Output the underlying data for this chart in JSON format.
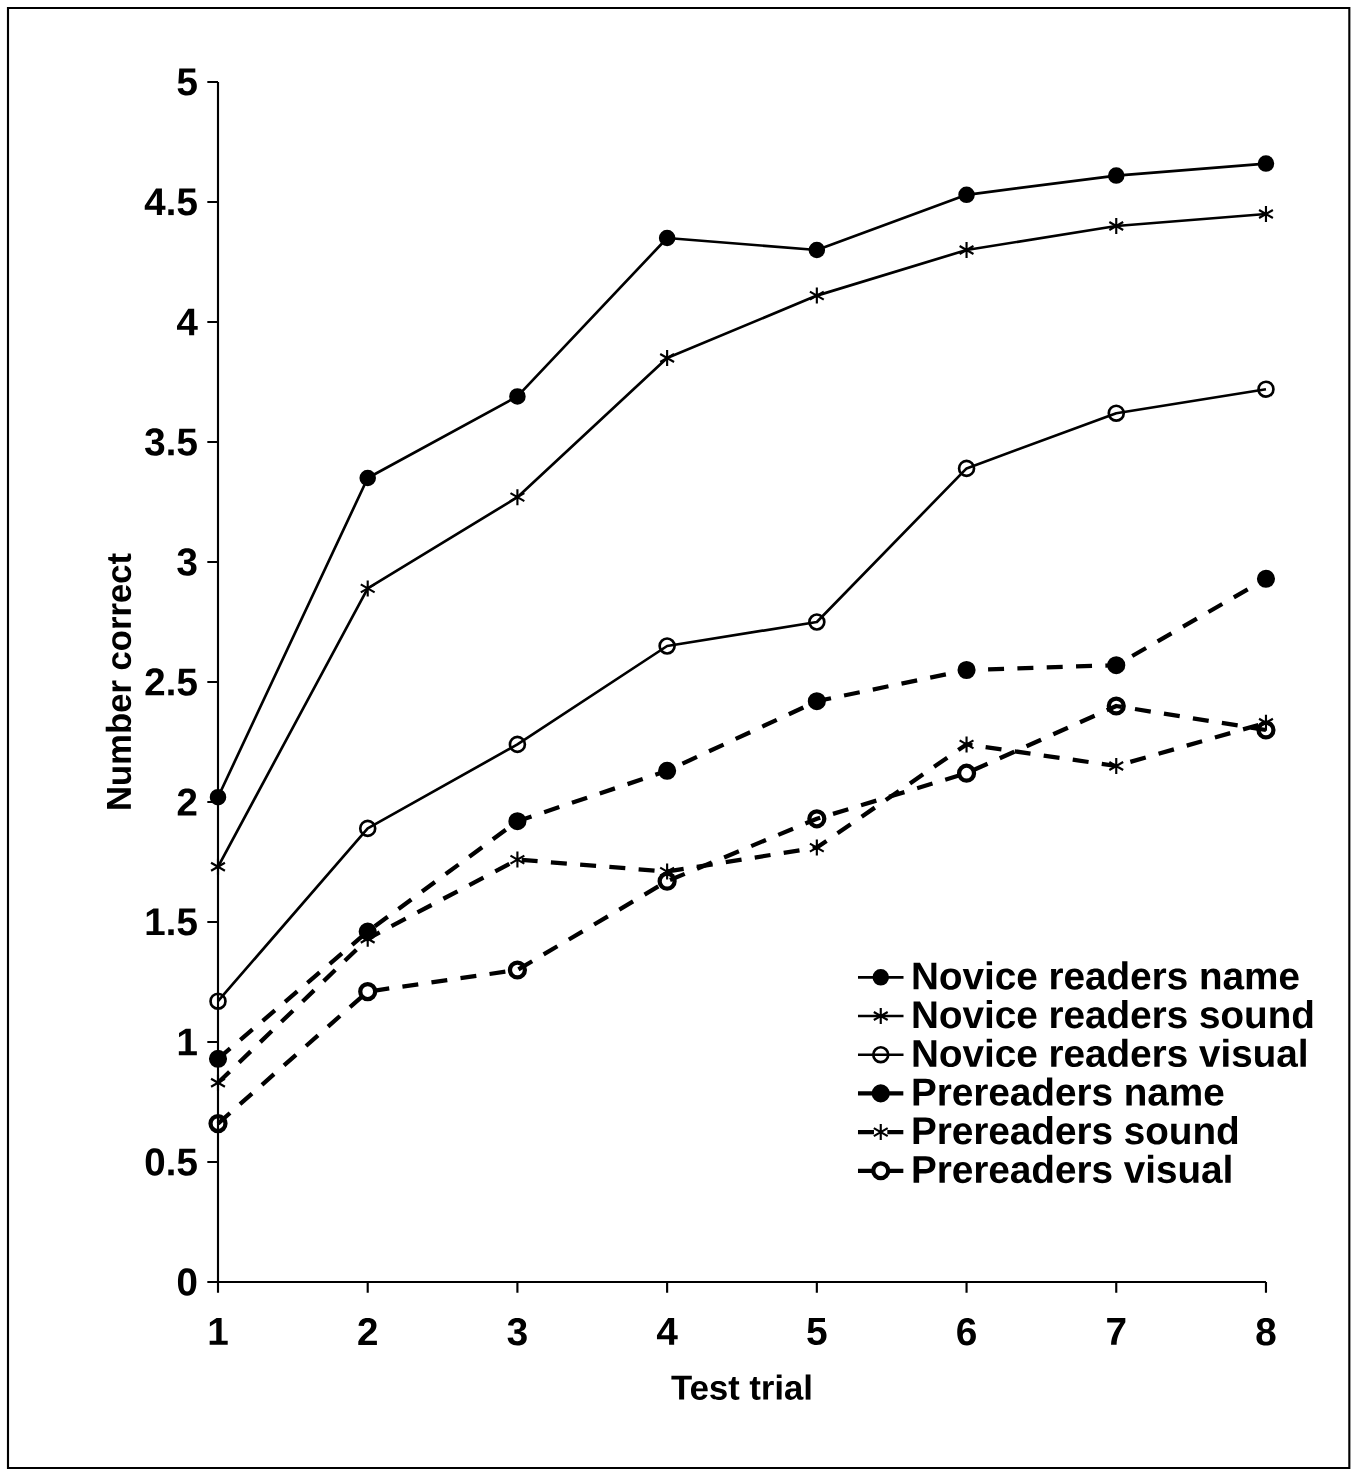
{
  "chart_data": {
    "type": "line",
    "xlabel": "Test trial",
    "ylabel": "Number correct",
    "x": [
      1,
      2,
      3,
      4,
      5,
      6,
      7,
      8
    ],
    "series": [
      {
        "name": "Novice readers name",
        "color": "#000000",
        "marker": "circle",
        "line_style": "solid",
        "values": [
          2.02,
          3.35,
          3.69,
          4.35,
          4.3,
          4.53,
          4.61,
          4.66
        ]
      },
      {
        "name": "Novice readers sound",
        "color": "#000000",
        "marker": "cross",
        "line_style": "solid",
        "values": [
          1.73,
          2.89,
          3.27,
          3.85,
          4.11,
          4.3,
          4.4,
          4.45
        ]
      },
      {
        "name": "Novice readers visual",
        "color": "#000000",
        "marker": "open circle",
        "line_style": "solid",
        "values": [
          1.17,
          1.89,
          2.24,
          2.65,
          2.75,
          3.39,
          3.62,
          3.72
        ]
      },
      {
        "name": "Prereaders name",
        "color": "#000000",
        "marker": "circle",
        "line_style": "dashed",
        "values": [
          0.93,
          1.46,
          1.92,
          2.13,
          2.42,
          2.55,
          2.57,
          2.93
        ]
      },
      {
        "name": "Prereaders sound",
        "color": "#000000",
        "marker": "cross",
        "line_style": "dashed",
        "values": [
          0.83,
          1.43,
          1.76,
          1.71,
          1.81,
          2.24,
          2.15,
          2.33
        ]
      },
      {
        "name": "Prereaders visual",
        "color": "#000000",
        "marker": "open circle",
        "line_style": "dashed",
        "values": [
          0.66,
          1.21,
          1.3,
          1.67,
          1.93,
          2.12,
          2.4,
          2.3
        ]
      }
    ],
    "xlim": [
      1,
      8
    ],
    "xticks": [
      1,
      2,
      3,
      4,
      5,
      6,
      7,
      8
    ],
    "ylim": [
      0,
      5
    ],
    "yticks": [
      0,
      0.5,
      1,
      1.5,
      2,
      2.5,
      3,
      3.5,
      4,
      4.5,
      5
    ],
    "grid": false,
    "legend": "bottom right"
  }
}
